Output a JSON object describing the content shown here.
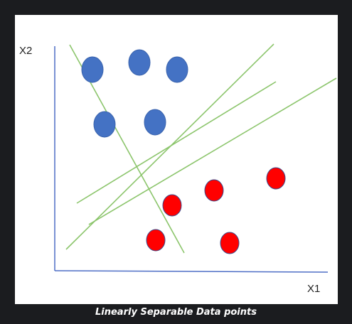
{
  "diagram": {
    "y_axis_label": "X2",
    "x_axis_label": "X1",
    "caption": "Linearly Separable Data points",
    "colors": {
      "background": "#1b1c1f",
      "panel": "#ffffff",
      "axis": "#4f6fc6",
      "class_a": "#4472c4",
      "class_b": "#ff0000",
      "separator": "#8cc56c",
      "caption_text": "#ffffff"
    }
  }
}
